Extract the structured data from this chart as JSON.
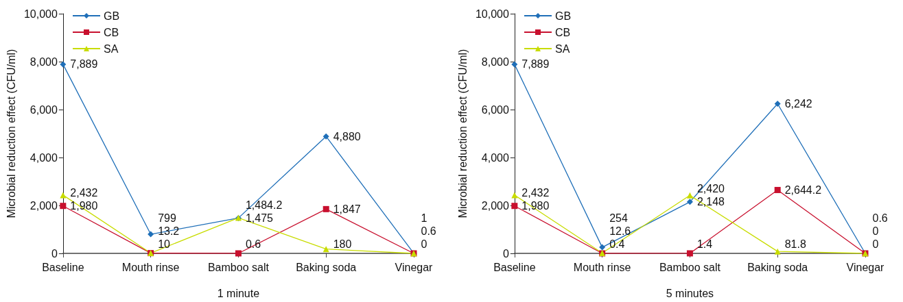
{
  "chart_data": [
    {
      "type": "line",
      "xlabel": "1 minute",
      "ylabel": "Microbial reduction effect (CFU/ml)",
      "categories": [
        "Baseline",
        "Mouth rinse",
        "Bamboo salt",
        "Baking soda",
        "Vinegar"
      ],
      "ylim": [
        0,
        10000
      ],
      "yticks": [
        0,
        {
          "value": 2000,
          "label": "2,000"
        },
        {
          "value": 4000,
          "label": "4,000"
        },
        {
          "value": 6000,
          "label": "6,000"
        },
        {
          "value": 8000,
          "label": "8,000"
        },
        {
          "value": 10000,
          "label": "10,000"
        }
      ],
      "grid": false,
      "legend": "top left",
      "series": [
        {
          "name": "GB",
          "color": "#1f6fb8",
          "marker": "diamond",
          "values": [
            7889,
            799,
            1475,
            4880,
            1
          ],
          "value_labels": [
            "7,889",
            "799",
            "1,475",
            "4,880",
            "1"
          ]
        },
        {
          "name": "CB",
          "color": "#c8102e",
          "marker": "square",
          "values": [
            1980,
            10,
            0.6,
            1847,
            0.6
          ],
          "value_labels": [
            "1,980",
            "10",
            "0.6",
            "1,847",
            "0.6"
          ]
        },
        {
          "name": "SA",
          "color": "#c8dc00",
          "marker": "triangle",
          "values": [
            2432,
            13.2,
            1484.2,
            180,
            0
          ],
          "value_labels": [
            "2,432",
            "13.2",
            "1,484.2",
            "180",
            "0"
          ]
        }
      ]
    },
    {
      "type": "line",
      "xlabel": "5 minutes",
      "ylabel": "Microbial reduction effect (CFU/ml)",
      "categories": [
        "Baseline",
        "Mouth rinse",
        "Bamboo salt",
        "Baking soda",
        "Vinegar"
      ],
      "ylim": [
        0,
        10000
      ],
      "yticks": [
        0,
        {
          "value": 2000,
          "label": "2,000"
        },
        {
          "value": 4000,
          "label": "4,000"
        },
        {
          "value": 6000,
          "label": "6,000"
        },
        {
          "value": 8000,
          "label": "8,000"
        },
        {
          "value": 10000,
          "label": "10,000"
        }
      ],
      "grid": false,
      "legend": "top left",
      "series": [
        {
          "name": "GB",
          "color": "#1f6fb8",
          "marker": "diamond",
          "values": [
            7889,
            254,
            2148,
            6242,
            0
          ],
          "value_labels": [
            "7,889",
            "254",
            "2,148",
            "6,242",
            "0"
          ]
        },
        {
          "name": "CB",
          "color": "#c8102e",
          "marker": "square",
          "values": [
            1980,
            0.4,
            1.4,
            2644.2,
            0.6
          ],
          "value_labels": [
            "1,980",
            "0.4",
            "1.4",
            "2,644.2",
            "0.6"
          ]
        },
        {
          "name": "SA",
          "color": "#c8dc00",
          "marker": "triangle",
          "values": [
            2432,
            12.6,
            2420,
            81.8,
            0
          ],
          "value_labels": [
            "2,432",
            "12.6",
            "2,420",
            "81.8",
            "0"
          ]
        }
      ]
    }
  ]
}
